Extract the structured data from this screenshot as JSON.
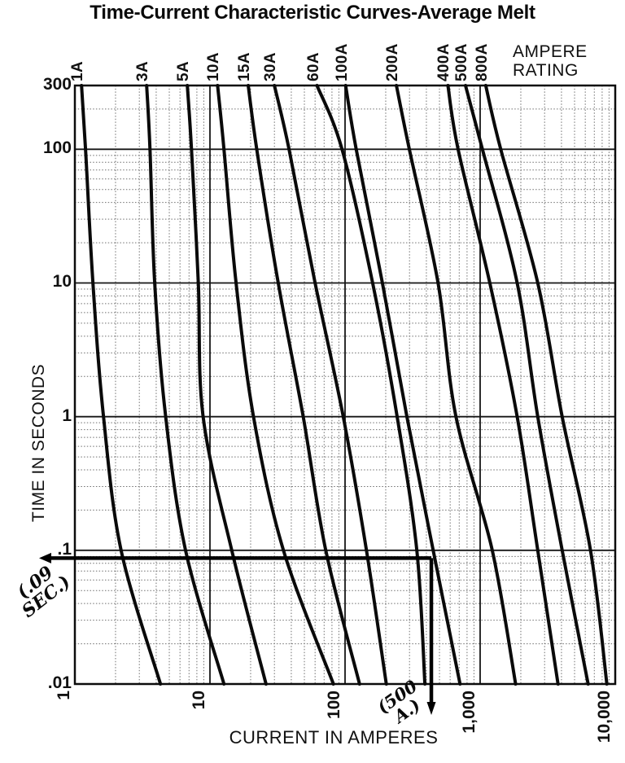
{
  "title": "Time-Current Characteristic Curves-Average Melt",
  "axes": {
    "x_label": "CURRENT IN AMPERES",
    "y_label": "TIME IN SECONDS",
    "rating_line1": "AMPERE",
    "rating_line2": "RATING"
  },
  "annotations": {
    "time_note_line1": "(.09",
    "time_note_line2": "SEC.)",
    "current_note_line1": "(500",
    "current_note_line2": "A.)"
  },
  "chart_data": {
    "type": "line",
    "title": "Time-Current Characteristic Curves-Average Melt",
    "xlabel": "CURRENT IN AMPERES",
    "ylabel": "TIME IN SECONDS",
    "x_scale": "log",
    "y_scale": "log",
    "xlim": [
      1,
      10000
    ],
    "ylim": [
      0.01,
      300
    ],
    "grid": true,
    "legend_position": "top-labels",
    "x_ticks": [
      {
        "value": 1,
        "label": "1"
      },
      {
        "value": 10,
        "label": "10"
      },
      {
        "value": 100,
        "label": "100"
      },
      {
        "value": 1000,
        "label": "1,000"
      },
      {
        "value": 10000,
        "label": "10,000"
      }
    ],
    "y_ticks": [
      {
        "value": 300,
        "label": "300"
      },
      {
        "value": 100,
        "label": "100"
      },
      {
        "value": 10,
        "label": "10"
      },
      {
        "value": 1,
        "label": "1"
      },
      {
        "value": 0.1,
        "label": ".1"
      },
      {
        "value": 0.01,
        "label": ".01"
      }
    ],
    "series": [
      {
        "name": "1A",
        "rating_a": 1,
        "points_time_amps": [
          [
            300,
            1.12
          ],
          [
            100,
            1.2
          ],
          [
            10,
            1.36
          ],
          [
            1,
            1.63
          ],
          [
            0.1,
            2.2
          ],
          [
            0.01,
            4.3
          ]
        ]
      },
      {
        "name": "3A",
        "rating_a": 3,
        "points_time_amps": [
          [
            300,
            3.4
          ],
          [
            100,
            3.6
          ],
          [
            10,
            3.9
          ],
          [
            1,
            4.7
          ],
          [
            0.1,
            6.6
          ],
          [
            0.01,
            12.7
          ]
        ]
      },
      {
        "name": "5A",
        "rating_a": 5,
        "points_time_amps": [
          [
            300,
            6.8
          ],
          [
            100,
            7.3
          ],
          [
            10,
            8.2
          ],
          [
            1,
            8.9
          ],
          [
            0.1,
            14.5
          ],
          [
            0.01,
            26
          ]
        ]
      },
      {
        "name": "10A",
        "rating_a": 10,
        "points_time_amps": [
          [
            300,
            11.4
          ],
          [
            100,
            12.7
          ],
          [
            10,
            15.6
          ],
          [
            1,
            21
          ],
          [
            0.1,
            35
          ],
          [
            0.01,
            82
          ]
        ]
      },
      {
        "name": "15A",
        "rating_a": 15,
        "points_time_amps": [
          [
            300,
            19.2
          ],
          [
            100,
            22.2
          ],
          [
            10,
            32
          ],
          [
            1,
            49
          ],
          [
            0.1,
            72
          ],
          [
            0.01,
            128
          ]
        ]
      },
      {
        "name": "30A",
        "rating_a": 30,
        "points_time_amps": [
          [
            300,
            30
          ],
          [
            100,
            38.5
          ],
          [
            10,
            60
          ],
          [
            1,
            97
          ],
          [
            0.1,
            144
          ],
          [
            0.01,
            202
          ]
        ]
      },
      {
        "name": "60A",
        "rating_a": 60,
        "points_time_amps": [
          [
            300,
            62
          ],
          [
            100,
            95
          ],
          [
            10,
            160
          ],
          [
            1,
            243
          ],
          [
            0.1,
            340
          ],
          [
            0.01,
            390
          ]
        ]
      },
      {
        "name": "100A",
        "rating_a": 100,
        "points_time_amps": [
          [
            300,
            101
          ],
          [
            100,
            121
          ],
          [
            10,
            189
          ],
          [
            1,
            287
          ],
          [
            0.1,
            449
          ],
          [
            0.01,
            710
          ]
        ]
      },
      {
        "name": "200A",
        "rating_a": 200,
        "points_time_amps": [
          [
            300,
            240
          ],
          [
            100,
            299
          ],
          [
            10,
            488
          ],
          [
            1,
            662
          ],
          [
            0.1,
            1230
          ],
          [
            0.01,
            1830
          ]
        ]
      },
      {
        "name": "400A",
        "rating_a": 400,
        "points_time_amps": [
          [
            300,
            577
          ],
          [
            100,
            687
          ],
          [
            10,
            1180
          ],
          [
            1,
            1880
          ],
          [
            0.1,
            2670
          ],
          [
            0.01,
            3770
          ]
        ]
      },
      {
        "name": "500A",
        "rating_a": 500,
        "points_time_amps": [
          [
            300,
            779
          ],
          [
            100,
            1040
          ],
          [
            10,
            1880
          ],
          [
            1,
            2670
          ],
          [
            0.1,
            4050
          ],
          [
            0.01,
            6300
          ]
        ]
      },
      {
        "name": "800A",
        "rating_a": 800,
        "points_time_amps": [
          [
            300,
            1100
          ],
          [
            100,
            1420
          ],
          [
            10,
            2670
          ],
          [
            1,
            4050
          ],
          [
            0.1,
            6560
          ],
          [
            0.01,
            8670
          ]
        ]
      }
    ],
    "annotation_arrow": {
      "time_s": 0.09,
      "current_a": 500
    }
  }
}
